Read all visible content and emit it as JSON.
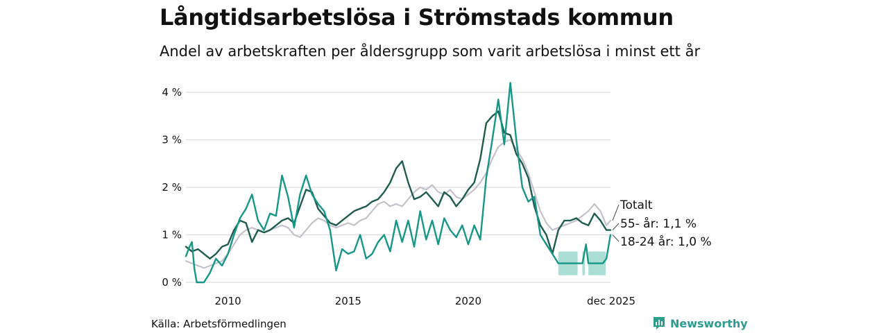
{
  "header": {
    "title": "Långtidsarbetslösa i Strömstads kommun",
    "subtitle": "Andel av arbetskraften per åldersgrupp som varit arbetslösa i minst ett år"
  },
  "footer": {
    "source": "Källa: Arbetsförmedlingen",
    "brand": "Newsworthy"
  },
  "colors": {
    "total": "#c4c0cc",
    "age55": "#1e5b4f",
    "age1824": "#159686",
    "band": "#8ed3c6",
    "grid": "#dddddd",
    "brand": "#2a9d8f"
  },
  "chart_data": {
    "type": "line",
    "title": "Långtidsarbetslösa i Strömstads kommun",
    "subtitle": "Andel av arbetskraften per åldersgrupp som varit arbetslösa i minst ett år",
    "xlabel": "",
    "ylabel": "",
    "xlim": [
      2008.25,
      2025.92
    ],
    "ylim": [
      0,
      4
    ],
    "y_ticks": [
      {
        "value": 0,
        "label": "0 %"
      },
      {
        "value": 1,
        "label": "1 %"
      },
      {
        "value": 2,
        "label": "2 %"
      },
      {
        "value": 3,
        "label": "3 %"
      },
      {
        "value": 4,
        "label": "4 %"
      }
    ],
    "x_ticks": [
      {
        "value": 2010,
        "label": "2010"
      },
      {
        "value": 2015,
        "label": "2015"
      },
      {
        "value": 2020,
        "label": "2020"
      },
      {
        "value": 2025.92,
        "label": "dec 2025"
      }
    ],
    "grid": "horizontal",
    "series": [
      {
        "name": "Totalt",
        "legend_label": "Totalt",
        "color": "#c4c0cc",
        "points": [
          [
            2008.25,
            0.45
          ],
          [
            2008.5,
            0.4
          ],
          [
            2008.75,
            0.35
          ],
          [
            2009.0,
            0.3
          ],
          [
            2009.25,
            0.35
          ],
          [
            2009.5,
            0.4
          ],
          [
            2009.75,
            0.45
          ],
          [
            2010.0,
            0.6
          ],
          [
            2010.25,
            0.8
          ],
          [
            2010.5,
            1.0
          ],
          [
            2010.75,
            1.1
          ],
          [
            2011.0,
            1.15
          ],
          [
            2011.25,
            1.1
          ],
          [
            2011.5,
            1.05
          ],
          [
            2011.75,
            1.1
          ],
          [
            2012.0,
            1.15
          ],
          [
            2012.25,
            1.2
          ],
          [
            2012.5,
            1.15
          ],
          [
            2012.75,
            1.0
          ],
          [
            2013.0,
            0.95
          ],
          [
            2013.25,
            1.1
          ],
          [
            2013.5,
            1.25
          ],
          [
            2013.75,
            1.35
          ],
          [
            2014.0,
            1.3
          ],
          [
            2014.25,
            1.2
          ],
          [
            2014.5,
            1.15
          ],
          [
            2014.75,
            1.2
          ],
          [
            2015.0,
            1.25
          ],
          [
            2015.25,
            1.2
          ],
          [
            2015.5,
            1.3
          ],
          [
            2015.75,
            1.35
          ],
          [
            2016.0,
            1.5
          ],
          [
            2016.25,
            1.65
          ],
          [
            2016.5,
            1.7
          ],
          [
            2016.75,
            1.6
          ],
          [
            2017.0,
            1.65
          ],
          [
            2017.25,
            1.6
          ],
          [
            2017.5,
            1.75
          ],
          [
            2017.75,
            1.9
          ],
          [
            2018.0,
            2.0
          ],
          [
            2018.25,
            1.95
          ],
          [
            2018.5,
            2.05
          ],
          [
            2018.75,
            1.9
          ],
          [
            2019.0,
            1.85
          ],
          [
            2019.25,
            1.95
          ],
          [
            2019.5,
            1.8
          ],
          [
            2019.75,
            1.75
          ],
          [
            2020.0,
            1.85
          ],
          [
            2020.25,
            1.95
          ],
          [
            2020.5,
            2.1
          ],
          [
            2020.75,
            2.3
          ],
          [
            2021.0,
            2.6
          ],
          [
            2021.25,
            2.85
          ],
          [
            2021.5,
            2.95
          ],
          [
            2021.75,
            3.0
          ],
          [
            2022.0,
            2.8
          ],
          [
            2022.25,
            2.6
          ],
          [
            2022.5,
            2.3
          ],
          [
            2022.75,
            1.9
          ],
          [
            2023.0,
            1.5
          ],
          [
            2023.25,
            1.25
          ],
          [
            2023.5,
            1.1
          ],
          [
            2023.75,
            1.15
          ],
          [
            2024.0,
            1.2
          ],
          [
            2024.25,
            1.25
          ],
          [
            2024.5,
            1.3
          ],
          [
            2024.75,
            1.4
          ],
          [
            2025.0,
            1.5
          ],
          [
            2025.25,
            1.65
          ],
          [
            2025.5,
            1.5
          ],
          [
            2025.75,
            1.2
          ],
          [
            2025.92,
            1.3
          ]
        ]
      },
      {
        "name": "55- år",
        "legend_label": "55- år: 1,1 %",
        "color": "#1e5b4f",
        "points": [
          [
            2008.25,
            0.75
          ],
          [
            2008.5,
            0.65
          ],
          [
            2008.75,
            0.7
          ],
          [
            2009.0,
            0.6
          ],
          [
            2009.25,
            0.5
          ],
          [
            2009.5,
            0.6
          ],
          [
            2009.75,
            0.75
          ],
          [
            2010.0,
            0.8
          ],
          [
            2010.25,
            1.1
          ],
          [
            2010.5,
            1.3
          ],
          [
            2010.75,
            1.25
          ],
          [
            2011.0,
            0.85
          ],
          [
            2011.25,
            1.1
          ],
          [
            2011.5,
            1.05
          ],
          [
            2011.75,
            1.1
          ],
          [
            2012.0,
            1.2
          ],
          [
            2012.25,
            1.3
          ],
          [
            2012.5,
            1.35
          ],
          [
            2012.75,
            1.25
          ],
          [
            2013.0,
            1.6
          ],
          [
            2013.25,
            1.95
          ],
          [
            2013.5,
            1.9
          ],
          [
            2013.75,
            1.55
          ],
          [
            2014.0,
            1.4
          ],
          [
            2014.25,
            1.25
          ],
          [
            2014.5,
            1.2
          ],
          [
            2014.75,
            1.3
          ],
          [
            2015.0,
            1.4
          ],
          [
            2015.25,
            1.5
          ],
          [
            2015.5,
            1.55
          ],
          [
            2015.75,
            1.6
          ],
          [
            2016.0,
            1.7
          ],
          [
            2016.25,
            1.75
          ],
          [
            2016.5,
            1.9
          ],
          [
            2016.75,
            2.1
          ],
          [
            2017.0,
            2.4
          ],
          [
            2017.25,
            2.55
          ],
          [
            2017.5,
            2.1
          ],
          [
            2017.75,
            1.75
          ],
          [
            2018.0,
            1.8
          ],
          [
            2018.25,
            1.9
          ],
          [
            2018.5,
            1.75
          ],
          [
            2018.75,
            1.6
          ],
          [
            2019.0,
            1.9
          ],
          [
            2019.25,
            1.8
          ],
          [
            2019.5,
            1.6
          ],
          [
            2019.75,
            1.75
          ],
          [
            2020.0,
            1.95
          ],
          [
            2020.25,
            2.1
          ],
          [
            2020.5,
            2.6
          ],
          [
            2020.75,
            3.35
          ],
          [
            2021.0,
            3.5
          ],
          [
            2021.25,
            3.6
          ],
          [
            2021.5,
            3.15
          ],
          [
            2021.75,
            3.1
          ],
          [
            2022.0,
            2.7
          ],
          [
            2022.25,
            2.5
          ],
          [
            2022.5,
            2.2
          ],
          [
            2022.75,
            1.6
          ],
          [
            2023.0,
            1.2
          ],
          [
            2023.25,
            1.0
          ],
          [
            2023.5,
            0.6
          ],
          [
            2023.75,
            1.1
          ],
          [
            2024.0,
            1.3
          ],
          [
            2024.25,
            1.3
          ],
          [
            2024.5,
            1.35
          ],
          [
            2024.75,
            1.25
          ],
          [
            2025.0,
            1.2
          ],
          [
            2025.25,
            1.45
          ],
          [
            2025.5,
            1.3
          ],
          [
            2025.75,
            1.1
          ],
          [
            2025.92,
            1.1
          ]
        ]
      },
      {
        "name": "18-24 år",
        "legend_label": "18-24 år: 1,0 %",
        "color": "#159686",
        "points": [
          [
            2008.25,
            0.55
          ],
          [
            2008.4,
            0.75
          ],
          [
            2008.5,
            0.85
          ],
          [
            2008.6,
            0.3
          ],
          [
            2008.7,
            0.0
          ],
          [
            2009.0,
            0.0
          ],
          [
            2009.25,
            0.2
          ],
          [
            2009.5,
            0.5
          ],
          [
            2009.75,
            0.35
          ],
          [
            2010.0,
            0.6
          ],
          [
            2010.25,
            1.0
          ],
          [
            2010.5,
            1.35
          ],
          [
            2010.75,
            1.55
          ],
          [
            2011.0,
            1.85
          ],
          [
            2011.25,
            1.3
          ],
          [
            2011.5,
            1.1
          ],
          [
            2011.75,
            1.45
          ],
          [
            2012.0,
            1.4
          ],
          [
            2012.25,
            2.25
          ],
          [
            2012.5,
            1.8
          ],
          [
            2012.75,
            1.15
          ],
          [
            2013.0,
            1.85
          ],
          [
            2013.25,
            2.25
          ],
          [
            2013.5,
            1.85
          ],
          [
            2013.75,
            1.65
          ],
          [
            2014.0,
            1.5
          ],
          [
            2014.25,
            1.1
          ],
          [
            2014.5,
            0.25
          ],
          [
            2014.75,
            0.7
          ],
          [
            2015.0,
            0.6
          ],
          [
            2015.25,
            0.65
          ],
          [
            2015.5,
            1.0
          ],
          [
            2015.75,
            0.5
          ],
          [
            2016.0,
            0.6
          ],
          [
            2016.25,
            0.85
          ],
          [
            2016.5,
            1.0
          ],
          [
            2016.75,
            0.65
          ],
          [
            2017.0,
            1.3
          ],
          [
            2017.25,
            0.85
          ],
          [
            2017.5,
            1.3
          ],
          [
            2017.75,
            0.75
          ],
          [
            2018.0,
            1.5
          ],
          [
            2018.25,
            0.9
          ],
          [
            2018.5,
            1.3
          ],
          [
            2018.75,
            0.8
          ],
          [
            2019.0,
            1.35
          ],
          [
            2019.25,
            1.1
          ],
          [
            2019.5,
            0.95
          ],
          [
            2019.75,
            1.2
          ],
          [
            2020.0,
            0.8
          ],
          [
            2020.25,
            1.2
          ],
          [
            2020.5,
            0.9
          ],
          [
            2020.75,
            2.2
          ],
          [
            2021.0,
            3.0
          ],
          [
            2021.25,
            3.85
          ],
          [
            2021.5,
            2.9
          ],
          [
            2021.75,
            4.2
          ],
          [
            2022.0,
            3.0
          ],
          [
            2022.25,
            2.0
          ],
          [
            2022.5,
            1.7
          ],
          [
            2022.75,
            1.8
          ],
          [
            2023.0,
            1.0
          ],
          [
            2023.25,
            0.8
          ],
          [
            2023.5,
            0.6
          ],
          [
            2023.75,
            0.4
          ],
          [
            2024.0,
            0.4
          ],
          [
            2024.5,
            0.4
          ],
          [
            2024.75,
            0.4
          ],
          [
            2024.9,
            0.8
          ],
          [
            2025.0,
            0.4
          ],
          [
            2025.2,
            0.4
          ],
          [
            2025.4,
            0.4
          ],
          [
            2025.6,
            0.4
          ],
          [
            2025.75,
            0.5
          ],
          [
            2025.92,
            1.0
          ]
        ]
      }
    ],
    "uncertainty_bands": [
      {
        "series": "18-24 år",
        "from": 2023.75,
        "to": 2024.55,
        "low": 0.15,
        "high": 0.65
      },
      {
        "series": "18-24 år",
        "from": 2024.75,
        "to": 2024.85,
        "low": 0.15,
        "high": 0.65
      },
      {
        "series": "18-24 år",
        "from": 2025.0,
        "to": 2025.72,
        "low": 0.15,
        "high": 0.65
      }
    ]
  }
}
